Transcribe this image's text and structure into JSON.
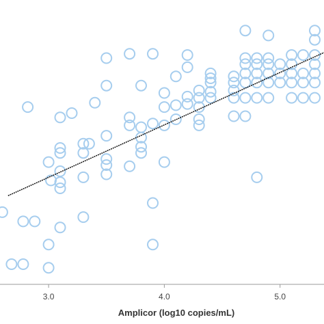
{
  "chart_data": {
    "type": "scatter",
    "xlabel": "Amplicor (log10 copies/mL)",
    "ylabel": "",
    "xlim": [
      2.58,
      5.38
    ],
    "ylim": [
      1.55,
      6.2
    ],
    "x_ticks": [
      3.0,
      4.0,
      5.0
    ],
    "x_tick_labels": [
      "3.0",
      "4.0",
      "5.0"
    ],
    "grid": false,
    "marker_color": "#a6cdee",
    "line_color": "#111111",
    "points": [
      {
        "x": 2.6,
        "y": 2.73
      },
      {
        "x": 2.68,
        "y": 1.88
      },
      {
        "x": 2.78,
        "y": 1.88
      },
      {
        "x": 2.78,
        "y": 2.58
      },
      {
        "x": 2.82,
        "y": 4.45
      },
      {
        "x": 2.88,
        "y": 2.58
      },
      {
        "x": 3.0,
        "y": 1.82
      },
      {
        "x": 3.0,
        "y": 2.2
      },
      {
        "x": 3.0,
        "y": 3.55
      },
      {
        "x": 3.02,
        "y": 3.25
      },
      {
        "x": 3.1,
        "y": 3.12
      },
      {
        "x": 3.1,
        "y": 3.22
      },
      {
        "x": 3.1,
        "y": 3.4
      },
      {
        "x": 3.1,
        "y": 3.7
      },
      {
        "x": 3.1,
        "y": 3.78
      },
      {
        "x": 3.1,
        "y": 4.28
      },
      {
        "x": 3.1,
        "y": 2.48
      },
      {
        "x": 3.2,
        "y": 4.35
      },
      {
        "x": 3.3,
        "y": 2.65
      },
      {
        "x": 3.3,
        "y": 3.3
      },
      {
        "x": 3.3,
        "y": 3.7
      },
      {
        "x": 3.3,
        "y": 3.85
      },
      {
        "x": 3.35,
        "y": 3.85
      },
      {
        "x": 3.4,
        "y": 4.52
      },
      {
        "x": 3.5,
        "y": 3.35
      },
      {
        "x": 3.5,
        "y": 3.5
      },
      {
        "x": 3.5,
        "y": 3.6
      },
      {
        "x": 3.5,
        "y": 3.98
      },
      {
        "x": 3.5,
        "y": 4.8
      },
      {
        "x": 3.5,
        "y": 5.25
      },
      {
        "x": 3.7,
        "y": 3.48
      },
      {
        "x": 3.7,
        "y": 4.15
      },
      {
        "x": 3.7,
        "y": 4.28
      },
      {
        "x": 3.7,
        "y": 5.32
      },
      {
        "x": 3.8,
        "y": 3.7
      },
      {
        "x": 3.8,
        "y": 3.8
      },
      {
        "x": 3.8,
        "y": 3.95
      },
      {
        "x": 3.8,
        "y": 4.12
      },
      {
        "x": 3.8,
        "y": 4.8
      },
      {
        "x": 3.9,
        "y": 2.2
      },
      {
        "x": 3.9,
        "y": 2.88
      },
      {
        "x": 3.9,
        "y": 4.18
      },
      {
        "x": 3.9,
        "y": 5.32
      },
      {
        "x": 4.0,
        "y": 3.55
      },
      {
        "x": 4.0,
        "y": 4.15
      },
      {
        "x": 4.0,
        "y": 4.45
      },
      {
        "x": 4.0,
        "y": 4.68
      },
      {
        "x": 4.1,
        "y": 4.25
      },
      {
        "x": 4.1,
        "y": 4.48
      },
      {
        "x": 4.1,
        "y": 4.95
      },
      {
        "x": 4.2,
        "y": 4.5
      },
      {
        "x": 4.2,
        "y": 4.62
      },
      {
        "x": 4.2,
        "y": 5.1
      },
      {
        "x": 4.2,
        "y": 5.3
      },
      {
        "x": 4.3,
        "y": 4.15
      },
      {
        "x": 4.3,
        "y": 4.25
      },
      {
        "x": 4.3,
        "y": 4.45
      },
      {
        "x": 4.3,
        "y": 4.6
      },
      {
        "x": 4.3,
        "y": 4.72
      },
      {
        "x": 4.4,
        "y": 4.6
      },
      {
        "x": 4.4,
        "y": 4.7
      },
      {
        "x": 4.4,
        "y": 4.85
      },
      {
        "x": 4.4,
        "y": 4.92
      },
      {
        "x": 4.4,
        "y": 5.0
      },
      {
        "x": 4.6,
        "y": 4.3
      },
      {
        "x": 4.6,
        "y": 4.6
      },
      {
        "x": 4.6,
        "y": 4.72
      },
      {
        "x": 4.6,
        "y": 4.85
      },
      {
        "x": 4.6,
        "y": 4.95
      },
      {
        "x": 4.7,
        "y": 4.3
      },
      {
        "x": 4.7,
        "y": 4.6
      },
      {
        "x": 4.7,
        "y": 4.85
      },
      {
        "x": 4.7,
        "y": 5.0
      },
      {
        "x": 4.7,
        "y": 5.15
      },
      {
        "x": 4.7,
        "y": 5.25
      },
      {
        "x": 4.7,
        "y": 5.7
      },
      {
        "x": 4.8,
        "y": 3.3
      },
      {
        "x": 4.8,
        "y": 4.6
      },
      {
        "x": 4.8,
        "y": 4.85
      },
      {
        "x": 4.8,
        "y": 5.0
      },
      {
        "x": 4.8,
        "y": 5.15
      },
      {
        "x": 4.8,
        "y": 5.25
      },
      {
        "x": 4.9,
        "y": 4.6
      },
      {
        "x": 4.9,
        "y": 4.85
      },
      {
        "x": 4.9,
        "y": 5.0
      },
      {
        "x": 4.9,
        "y": 5.15
      },
      {
        "x": 4.9,
        "y": 5.25
      },
      {
        "x": 4.9,
        "y": 5.62
      },
      {
        "x": 5.0,
        "y": 4.85
      },
      {
        "x": 5.0,
        "y": 5.0
      },
      {
        "x": 5.0,
        "y": 5.15
      },
      {
        "x": 5.1,
        "y": 4.6
      },
      {
        "x": 5.1,
        "y": 4.85
      },
      {
        "x": 5.1,
        "y": 5.0
      },
      {
        "x": 5.1,
        "y": 5.15
      },
      {
        "x": 5.1,
        "y": 5.3
      },
      {
        "x": 5.2,
        "y": 4.6
      },
      {
        "x": 5.2,
        "y": 4.85
      },
      {
        "x": 5.2,
        "y": 5.0
      },
      {
        "x": 5.2,
        "y": 5.3
      },
      {
        "x": 5.3,
        "y": 4.6
      },
      {
        "x": 5.3,
        "y": 4.85
      },
      {
        "x": 5.3,
        "y": 5.0
      },
      {
        "x": 5.3,
        "y": 5.15
      },
      {
        "x": 5.3,
        "y": 5.3
      },
      {
        "x": 5.3,
        "y": 5.55
      },
      {
        "x": 5.3,
        "y": 5.7
      }
    ],
    "regression_line": {
      "x": [
        2.65,
        5.38
      ],
      "y": [
        3.0,
        5.34
      ]
    }
  }
}
